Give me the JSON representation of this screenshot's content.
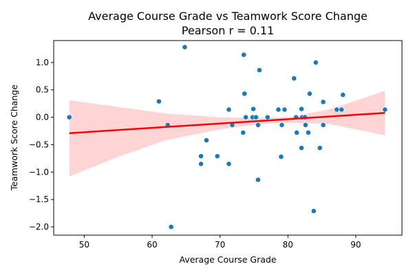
{
  "chart_data": {
    "type": "scatter",
    "title": "Average Course Grade vs Teamwork Score Change",
    "subtitle": "Pearson r = 0.11",
    "xlabel": "Average Course Grade",
    "ylabel": "Teamwork Score Change",
    "xlim": [
      45.5,
      96.8
    ],
    "ylim": [
      -2.15,
      1.4
    ],
    "xticks": [
      50,
      60,
      70,
      80,
      90
    ],
    "yticks": [
      -2.0,
      -1.5,
      -1.0,
      -0.5,
      0.0,
      0.5,
      1.0
    ],
    "xtick_labels": [
      "50",
      "60",
      "70",
      "80",
      "90"
    ],
    "ytick_labels": [
      "−2.0",
      "−1.5",
      "−1.0",
      "−0.5",
      "0.0",
      "0.5",
      "1.0"
    ],
    "grid": false,
    "colors": {
      "points": "#1f77b4",
      "fit_line": "#ff0000",
      "confidence_band": "#ffcccc"
    },
    "regression": {
      "x": [
        47.8,
        94.3
      ],
      "y": [
        -0.29,
        0.08
      ]
    },
    "confidence_band": {
      "x": [
        47.8,
        55,
        62,
        70,
        76,
        80,
        86,
        94.3
      ],
      "lower": [
        -1.08,
        -0.72,
        -0.42,
        -0.22,
        -0.12,
        -0.1,
        -0.12,
        -0.33
      ],
      "upper": [
        0.31,
        0.19,
        0.07,
        0.0,
        -0.01,
        0.0,
        0.14,
        0.48
      ]
    },
    "series": [
      {
        "points": [
          {
            "x": 47.8,
            "y": 0.0
          },
          {
            "x": 61.0,
            "y": 0.29
          },
          {
            "x": 62.3,
            "y": -0.14
          },
          {
            "x": 62.8,
            "y": -2.0
          },
          {
            "x": 64.8,
            "y": 1.28
          },
          {
            "x": 67.2,
            "y": -0.71
          },
          {
            "x": 67.2,
            "y": -0.85
          },
          {
            "x": 68.0,
            "y": -0.42
          },
          {
            "x": 69.6,
            "y": -0.71
          },
          {
            "x": 71.3,
            "y": 0.14
          },
          {
            "x": 71.3,
            "y": -0.85
          },
          {
            "x": 71.8,
            "y": -0.14
          },
          {
            "x": 73.4,
            "y": -0.28
          },
          {
            "x": 73.5,
            "y": 1.14
          },
          {
            "x": 73.6,
            "y": 0.43
          },
          {
            "x": 73.8,
            "y": 0.0
          },
          {
            "x": 74.8,
            "y": 0.0
          },
          {
            "x": 74.9,
            "y": 0.15
          },
          {
            "x": 75.3,
            "y": 0.0
          },
          {
            "x": 75.6,
            "y": -1.14
          },
          {
            "x": 75.6,
            "y": -0.14
          },
          {
            "x": 75.8,
            "y": 0.86
          },
          {
            "x": 77.0,
            "y": 0.0
          },
          {
            "x": 78.6,
            "y": 0.14
          },
          {
            "x": 79.0,
            "y": -0.72
          },
          {
            "x": 79.1,
            "y": -0.14
          },
          {
            "x": 79.5,
            "y": 0.14
          },
          {
            "x": 80.9,
            "y": 0.71
          },
          {
            "x": 81.2,
            "y": 0.0
          },
          {
            "x": 81.3,
            "y": -0.28
          },
          {
            "x": 82.0,
            "y": -0.56
          },
          {
            "x": 82.0,
            "y": 0.15
          },
          {
            "x": 82.1,
            "y": 0.0
          },
          {
            "x": 82.5,
            "y": 0.0
          },
          {
            "x": 82.6,
            "y": -0.14
          },
          {
            "x": 83.0,
            "y": -0.28
          },
          {
            "x": 83.2,
            "y": 0.43
          },
          {
            "x": 83.8,
            "y": -1.71
          },
          {
            "x": 84.1,
            "y": 1.0
          },
          {
            "x": 84.7,
            "y": -0.56
          },
          {
            "x": 85.2,
            "y": 0.28
          },
          {
            "x": 85.2,
            "y": -0.14
          },
          {
            "x": 87.2,
            "y": 0.14
          },
          {
            "x": 87.9,
            "y": 0.14
          },
          {
            "x": 88.1,
            "y": 0.41
          },
          {
            "x": 94.3,
            "y": 0.14
          }
        ]
      }
    ]
  }
}
